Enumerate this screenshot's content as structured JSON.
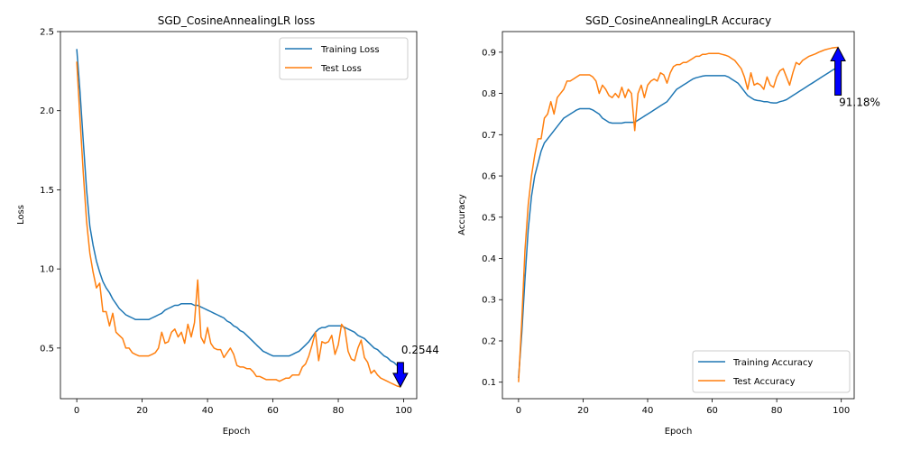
{
  "colors": {
    "training": "#1f77b4",
    "test": "#ff7f0e",
    "arrow_fill": "#0000ff"
  },
  "chart_data": [
    {
      "type": "line",
      "title": "SGD_CosineAnnealingLR loss",
      "xlabel": "Epoch",
      "ylabel": "Loss",
      "xlim": [
        -5,
        104
      ],
      "ylim": [
        0.18,
        2.5
      ],
      "xticks": [
        0,
        20,
        40,
        60,
        80,
        100
      ],
      "yticks": [
        0.5,
        1.0,
        1.5,
        2.0,
        2.5
      ],
      "ytick_labels": [
        "0.5",
        "1.0",
        "1.5",
        "2.0",
        "2.5"
      ],
      "legend_position": "upper right",
      "grid": false,
      "series": [
        {
          "name": "Training Loss",
          "color": "#1f77b4",
          "x": [
            0,
            1,
            2,
            3,
            4,
            5,
            6,
            7,
            8,
            9,
            10,
            11,
            12,
            13,
            14,
            15,
            16,
            17,
            18,
            19,
            20,
            21,
            22,
            23,
            24,
            25,
            26,
            27,
            28,
            29,
            30,
            31,
            32,
            33,
            34,
            35,
            36,
            37,
            38,
            39,
            40,
            41,
            42,
            43,
            44,
            45,
            46,
            47,
            48,
            49,
            50,
            51,
            52,
            53,
            54,
            55,
            56,
            57,
            58,
            59,
            60,
            61,
            62,
            63,
            64,
            65,
            66,
            67,
            68,
            69,
            70,
            71,
            72,
            73,
            74,
            75,
            76,
            77,
            78,
            79,
            80,
            81,
            82,
            83,
            84,
            85,
            86,
            87,
            88,
            89,
            90,
            91,
            92,
            93,
            94,
            95,
            96,
            97,
            98,
            99
          ],
          "y": [
            2.39,
            2.12,
            1.8,
            1.5,
            1.27,
            1.15,
            1.05,
            0.98,
            0.92,
            0.88,
            0.85,
            0.81,
            0.78,
            0.75,
            0.73,
            0.71,
            0.7,
            0.69,
            0.68,
            0.68,
            0.68,
            0.68,
            0.68,
            0.69,
            0.7,
            0.71,
            0.72,
            0.74,
            0.75,
            0.76,
            0.77,
            0.77,
            0.78,
            0.78,
            0.78,
            0.78,
            0.77,
            0.77,
            0.76,
            0.75,
            0.74,
            0.73,
            0.72,
            0.71,
            0.7,
            0.69,
            0.67,
            0.66,
            0.64,
            0.63,
            0.61,
            0.6,
            0.58,
            0.56,
            0.54,
            0.52,
            0.5,
            0.48,
            0.47,
            0.46,
            0.45,
            0.45,
            0.45,
            0.45,
            0.45,
            0.45,
            0.46,
            0.47,
            0.48,
            0.5,
            0.52,
            0.54,
            0.57,
            0.6,
            0.62,
            0.63,
            0.63,
            0.64,
            0.64,
            0.64,
            0.64,
            0.64,
            0.63,
            0.62,
            0.61,
            0.6,
            0.58,
            0.57,
            0.56,
            0.54,
            0.52,
            0.5,
            0.49,
            0.47,
            0.45,
            0.44,
            0.42,
            0.41,
            0.39,
            0.38
          ]
        },
        {
          "name": "Test Loss",
          "color": "#ff7f0e",
          "x": [
            0,
            1,
            2,
            3,
            4,
            5,
            6,
            7,
            8,
            9,
            10,
            11,
            12,
            13,
            14,
            15,
            16,
            17,
            18,
            19,
            20,
            21,
            22,
            23,
            24,
            25,
            26,
            27,
            28,
            29,
            30,
            31,
            32,
            33,
            34,
            35,
            36,
            37,
            38,
            39,
            40,
            41,
            42,
            43,
            44,
            45,
            46,
            47,
            48,
            49,
            50,
            51,
            52,
            53,
            54,
            55,
            56,
            57,
            58,
            59,
            60,
            61,
            62,
            63,
            64,
            65,
            66,
            67,
            68,
            69,
            70,
            71,
            72,
            73,
            74,
            75,
            76,
            77,
            78,
            79,
            80,
            81,
            82,
            83,
            84,
            85,
            86,
            87,
            88,
            89,
            90,
            91,
            92,
            93,
            94,
            95,
            96,
            97,
            98,
            99
          ],
          "y": [
            2.31,
            1.95,
            1.6,
            1.3,
            1.1,
            0.98,
            0.88,
            0.91,
            0.73,
            0.73,
            0.64,
            0.72,
            0.6,
            0.58,
            0.56,
            0.5,
            0.5,
            0.47,
            0.46,
            0.45,
            0.45,
            0.45,
            0.45,
            0.46,
            0.47,
            0.5,
            0.6,
            0.53,
            0.54,
            0.6,
            0.62,
            0.57,
            0.6,
            0.53,
            0.65,
            0.57,
            0.66,
            0.93,
            0.57,
            0.53,
            0.63,
            0.53,
            0.5,
            0.49,
            0.49,
            0.44,
            0.47,
            0.5,
            0.46,
            0.39,
            0.38,
            0.38,
            0.37,
            0.37,
            0.35,
            0.32,
            0.32,
            0.31,
            0.3,
            0.3,
            0.3,
            0.3,
            0.29,
            0.3,
            0.31,
            0.31,
            0.33,
            0.33,
            0.33,
            0.38,
            0.4,
            0.45,
            0.52,
            0.6,
            0.42,
            0.54,
            0.53,
            0.54,
            0.58,
            0.46,
            0.52,
            0.65,
            0.62,
            0.48,
            0.43,
            0.42,
            0.5,
            0.55,
            0.44,
            0.41,
            0.34,
            0.36,
            0.33,
            0.31,
            0.3,
            0.29,
            0.28,
            0.27,
            0.26,
            0.2544
          ]
        }
      ],
      "annotation": {
        "text": "0.2544",
        "x": 99,
        "y": 0.2544,
        "direction": "down"
      }
    },
    {
      "type": "line",
      "title": "SGD_CosineAnnealingLR Accuracy",
      "xlabel": "Epoch",
      "ylabel": "Accuracy",
      "xlim": [
        -5,
        104
      ],
      "ylim": [
        0.06,
        0.95
      ],
      "xticks": [
        0,
        20,
        40,
        60,
        80,
        100
      ],
      "yticks": [
        0.1,
        0.2,
        0.3,
        0.4,
        0.5,
        0.6,
        0.7,
        0.8,
        0.9
      ],
      "ytick_labels": [
        "0.1",
        "0.2",
        "0.3",
        "0.4",
        "0.5",
        "0.6",
        "0.7",
        "0.8",
        "0.9"
      ],
      "legend_position": "lower right",
      "grid": false,
      "series": [
        {
          "name": "Training Accuracy",
          "color": "#1f77b4",
          "x": [
            0,
            1,
            2,
            3,
            4,
            5,
            6,
            7,
            8,
            9,
            10,
            11,
            12,
            13,
            14,
            15,
            16,
            17,
            18,
            19,
            20,
            21,
            22,
            23,
            24,
            25,
            26,
            27,
            28,
            29,
            30,
            31,
            32,
            33,
            34,
            35,
            36,
            37,
            38,
            39,
            40,
            41,
            42,
            43,
            44,
            45,
            46,
            47,
            48,
            49,
            50,
            51,
            52,
            53,
            54,
            55,
            56,
            57,
            58,
            59,
            60,
            61,
            62,
            63,
            64,
            65,
            66,
            67,
            68,
            69,
            70,
            71,
            72,
            73,
            74,
            75,
            76,
            77,
            78,
            79,
            80,
            81,
            82,
            83,
            84,
            85,
            86,
            87,
            88,
            89,
            90,
            91,
            92,
            93,
            94,
            95,
            96,
            97,
            98,
            99
          ],
          "y": [
            0.11,
            0.22,
            0.35,
            0.47,
            0.55,
            0.6,
            0.63,
            0.66,
            0.68,
            0.69,
            0.7,
            0.71,
            0.72,
            0.73,
            0.74,
            0.745,
            0.75,
            0.755,
            0.76,
            0.763,
            0.763,
            0.763,
            0.763,
            0.76,
            0.755,
            0.75,
            0.74,
            0.735,
            0.73,
            0.728,
            0.728,
            0.728,
            0.728,
            0.73,
            0.73,
            0.73,
            0.73,
            0.735,
            0.74,
            0.745,
            0.75,
            0.755,
            0.76,
            0.765,
            0.77,
            0.775,
            0.78,
            0.79,
            0.8,
            0.81,
            0.815,
            0.82,
            0.825,
            0.83,
            0.835,
            0.838,
            0.84,
            0.842,
            0.843,
            0.843,
            0.843,
            0.843,
            0.843,
            0.843,
            0.843,
            0.84,
            0.835,
            0.83,
            0.825,
            0.815,
            0.805,
            0.795,
            0.79,
            0.785,
            0.783,
            0.782,
            0.78,
            0.78,
            0.778,
            0.777,
            0.777,
            0.78,
            0.782,
            0.785,
            0.79,
            0.795,
            0.8,
            0.805,
            0.81,
            0.815,
            0.82,
            0.825,
            0.83,
            0.835,
            0.84,
            0.845,
            0.85,
            0.855,
            0.86,
            0.862
          ]
        },
        {
          "name": "Test Accuracy",
          "color": "#ff7f0e",
          "x": [
            0,
            1,
            2,
            3,
            4,
            5,
            6,
            7,
            8,
            9,
            10,
            11,
            12,
            13,
            14,
            15,
            16,
            17,
            18,
            19,
            20,
            21,
            22,
            23,
            24,
            25,
            26,
            27,
            28,
            29,
            30,
            31,
            32,
            33,
            34,
            35,
            36,
            37,
            38,
            39,
            40,
            41,
            42,
            43,
            44,
            45,
            46,
            47,
            48,
            49,
            50,
            51,
            52,
            53,
            54,
            55,
            56,
            57,
            58,
            59,
            60,
            61,
            62,
            63,
            64,
            65,
            66,
            67,
            68,
            69,
            70,
            71,
            72,
            73,
            74,
            75,
            76,
            77,
            78,
            79,
            80,
            81,
            82,
            83,
            84,
            85,
            86,
            87,
            88,
            89,
            90,
            91,
            92,
            93,
            94,
            95,
            96,
            97,
            98,
            99
          ],
          "y": [
            0.1,
            0.25,
            0.42,
            0.53,
            0.6,
            0.65,
            0.69,
            0.69,
            0.74,
            0.75,
            0.78,
            0.75,
            0.79,
            0.8,
            0.81,
            0.83,
            0.83,
            0.835,
            0.84,
            0.845,
            0.845,
            0.845,
            0.845,
            0.84,
            0.83,
            0.8,
            0.82,
            0.81,
            0.795,
            0.79,
            0.8,
            0.79,
            0.815,
            0.79,
            0.81,
            0.8,
            0.71,
            0.8,
            0.82,
            0.79,
            0.82,
            0.83,
            0.835,
            0.83,
            0.85,
            0.845,
            0.825,
            0.85,
            0.865,
            0.87,
            0.87,
            0.875,
            0.875,
            0.88,
            0.885,
            0.89,
            0.89,
            0.895,
            0.895,
            0.897,
            0.897,
            0.897,
            0.897,
            0.895,
            0.893,
            0.89,
            0.885,
            0.88,
            0.87,
            0.86,
            0.84,
            0.81,
            0.85,
            0.82,
            0.825,
            0.82,
            0.81,
            0.84,
            0.82,
            0.815,
            0.84,
            0.855,
            0.86,
            0.84,
            0.82,
            0.85,
            0.875,
            0.87,
            0.88,
            0.885,
            0.89,
            0.893,
            0.896,
            0.9,
            0.903,
            0.906,
            0.908,
            0.91,
            0.911,
            0.9118
          ]
        }
      ],
      "annotation": {
        "text": "91.18%",
        "x": 99,
        "y": 0.9118,
        "direction": "up"
      }
    }
  ]
}
